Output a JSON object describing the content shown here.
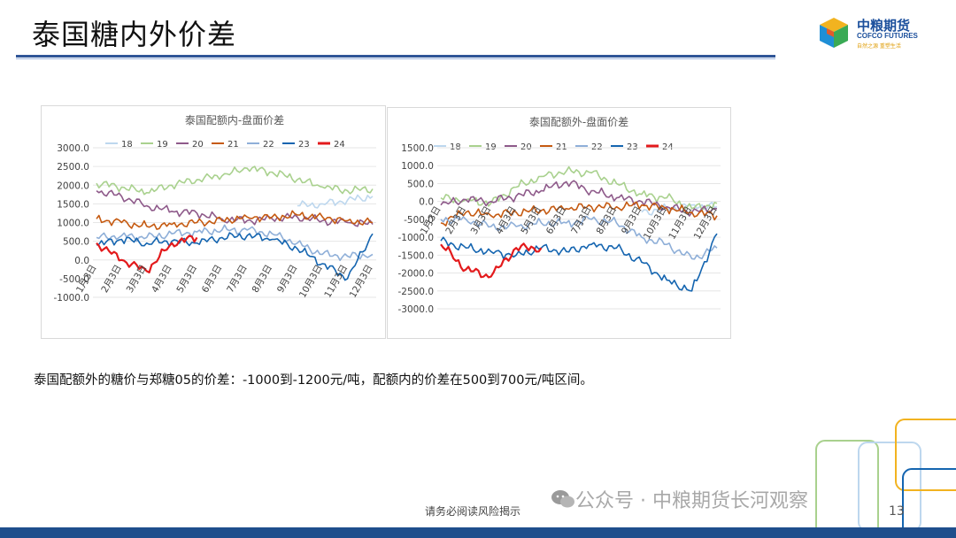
{
  "page": {
    "title": "泰国糖内外价差",
    "caption": "泰国配额外的糖价与郑糖05的价差：-1000到-1200元/吨，配额内的价差在500到700元/吨区间。",
    "footer_note": "请务必阅读风险揭示",
    "watermark": "公众号 · 中粮期货长河观察",
    "page_number": "13"
  },
  "logo": {
    "name": "中粮期货",
    "english": "COFCO FUTURES",
    "tagline": "自然之源 重塑生活"
  },
  "colors": {
    "title_rule": "#2f5597",
    "bottom_bar": "#1f4e8c",
    "s18": "#bdd7ee",
    "s19": "#a9d18e",
    "s20": "#8e5a8a",
    "s21": "#c55a11",
    "s22": "#8fafd8",
    "s23": "#1565b0",
    "s24": "#e31a1c"
  },
  "chart_data": [
    {
      "type": "line",
      "title": "泰国配额内-盘面价差",
      "ylim": [
        -1000,
        3000
      ],
      "yticks": [
        "3000.0",
        "2500.0",
        "2000.0",
        "1500.0",
        "1000.0",
        "500.0",
        "0.0",
        "-500.0",
        "-1000.0"
      ],
      "x": [
        "1月3日",
        "2月3日",
        "3月3日",
        "4月3日",
        "5月3日",
        "6月3日",
        "7月3日",
        "8月3日",
        "9月3日",
        "10月3日",
        "11月3日",
        "12月3日"
      ],
      "grid": true,
      "legend": "top",
      "series": [
        {
          "name": "18",
          "values": [
            null,
            null,
            null,
            null,
            null,
            null,
            null,
            null,
            1450,
            1500,
            1600,
            1700
          ]
        },
        {
          "name": "19",
          "values": [
            2050,
            1950,
            1800,
            2000,
            2150,
            2250,
            2450,
            2350,
            2150,
            1950,
            1850,
            1900
          ]
        },
        {
          "name": "20",
          "values": [
            1850,
            1700,
            1450,
            1300,
            1250,
            1100,
            1050,
            1100,
            1150,
            1050,
            1000,
            950
          ]
        },
        {
          "name": "21",
          "values": [
            1100,
            1000,
            900,
            950,
            1000,
            1050,
            1150,
            1150,
            1200,
            1150,
            1050,
            1000
          ]
        },
        {
          "name": "22",
          "values": [
            600,
            650,
            600,
            700,
            750,
            800,
            800,
            700,
            450,
            150,
            100,
            150
          ]
        },
        {
          "name": "23",
          "values": [
            400,
            550,
            450,
            500,
            450,
            600,
            650,
            550,
            300,
            -100,
            -500,
            700
          ]
        },
        {
          "name": "24",
          "values": [
            450,
            0,
            -300,
            450,
            600,
            null,
            null,
            null,
            null,
            null,
            null,
            null
          ]
        }
      ]
    },
    {
      "type": "line",
      "title": "泰国配额外-盘面价差",
      "ylim": [
        -3000,
        1500
      ],
      "yticks": [
        "1500.0",
        "1000.0",
        "500.0",
        "0.0",
        "-500.0",
        "-1000.0",
        "-1500.0",
        "-2000.0",
        "-2500.0",
        "-3000.0"
      ],
      "x": [
        "1月3日",
        "2月3日",
        "3月3日",
        "4月3日",
        "5月3日",
        "6月3日",
        "7月3日",
        "8月3日",
        "9月3日",
        "10月3日",
        "11月3日",
        "12月3日"
      ],
      "grid": true,
      "legend": "top",
      "series": [
        {
          "name": "18",
          "values": [
            null,
            null,
            null,
            null,
            null,
            null,
            null,
            null,
            -300,
            -200,
            -100,
            -150
          ]
        },
        {
          "name": "19",
          "values": [
            100,
            50,
            -50,
            400,
            700,
            850,
            800,
            500,
            200,
            100,
            -200,
            -50
          ]
        },
        {
          "name": "20",
          "values": [
            -100,
            50,
            0,
            150,
            300,
            550,
            300,
            100,
            0,
            -150,
            -300,
            -200
          ]
        },
        {
          "name": "21",
          "values": [
            -600,
            -300,
            -400,
            -300,
            -250,
            -200,
            -150,
            -150,
            -100,
            -200,
            -300,
            -400
          ]
        },
        {
          "name": "22",
          "values": [
            -500,
            -500,
            -700,
            -700,
            -600,
            -600,
            -500,
            -600,
            -1000,
            -1200,
            -1600,
            -1300
          ]
        },
        {
          "name": "23",
          "values": [
            -1100,
            -1300,
            -1400,
            -1500,
            -1300,
            -1400,
            -1200,
            -1300,
            -1700,
            -2200,
            -2500,
            -900
          ]
        },
        {
          "name": "24",
          "values": [
            -1200,
            -1900,
            -2100,
            -1300,
            -1300,
            null,
            null,
            null,
            null,
            null,
            null,
            null
          ]
        }
      ]
    }
  ]
}
